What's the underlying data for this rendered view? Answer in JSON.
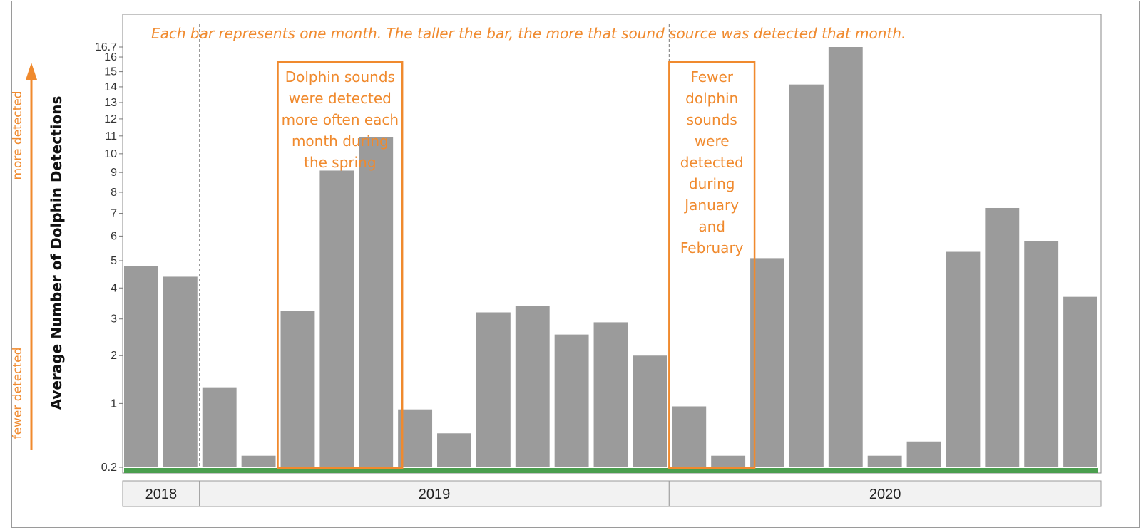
{
  "chart_data": {
    "type": "bar",
    "title": "Each bar represents one month. The taller the bar, the more that sound source was detected that month.",
    "ylabel": "Average Number of Dolphin Detections",
    "y_scale": "sqrt",
    "ylim": [
      0.2,
      16.7
    ],
    "y_ticks": [
      "16.7",
      "16",
      "15",
      "14",
      "13",
      "12",
      "11",
      "10",
      "9",
      "8",
      "7",
      "6",
      "5",
      "4",
      "3",
      "2",
      "1",
      "0.2"
    ],
    "y_tick_values": [
      16.7,
      16,
      15,
      14,
      13,
      12,
      11,
      10,
      9,
      8,
      7,
      6,
      5,
      4,
      3,
      2,
      1,
      0.2
    ],
    "grid": false,
    "side_labels": {
      "top": "more detected",
      "bottom": "fewer detected"
    },
    "years": [
      {
        "label": "2018",
        "months": 2
      },
      {
        "label": "2019",
        "months": 12
      },
      {
        "label": "2020",
        "months": 11
      }
    ],
    "series": [
      {
        "values": [
          4.8,
          4.4,
          1.3,
          0.3,
          3.25,
          9.1,
          10.95,
          0.9,
          0.55,
          3.2,
          3.4,
          2.55,
          2.9,
          2.0,
          0.95,
          0.3,
          5.1,
          14.15,
          16.7,
          0.3,
          0.45,
          5.35,
          7.25,
          5.8,
          3.7
        ]
      }
    ],
    "annotations": [
      {
        "text_lines": [
          "Dolphin sounds",
          "were detected",
          "more often each",
          "month during",
          "the spring"
        ],
        "first_bar": 4,
        "last_bar": 6
      },
      {
        "text_lines": [
          "Fewer",
          "dolphin",
          "sounds",
          "were",
          "detected",
          "during",
          "January",
          "and",
          "February"
        ],
        "first_bar": 14,
        "last_bar": 15
      }
    ],
    "colors": {
      "bar": "#9b9b9b",
      "accent": "#f08a2e",
      "effort": "#4a9e4e",
      "year_band": "#f2f2f2"
    }
  }
}
